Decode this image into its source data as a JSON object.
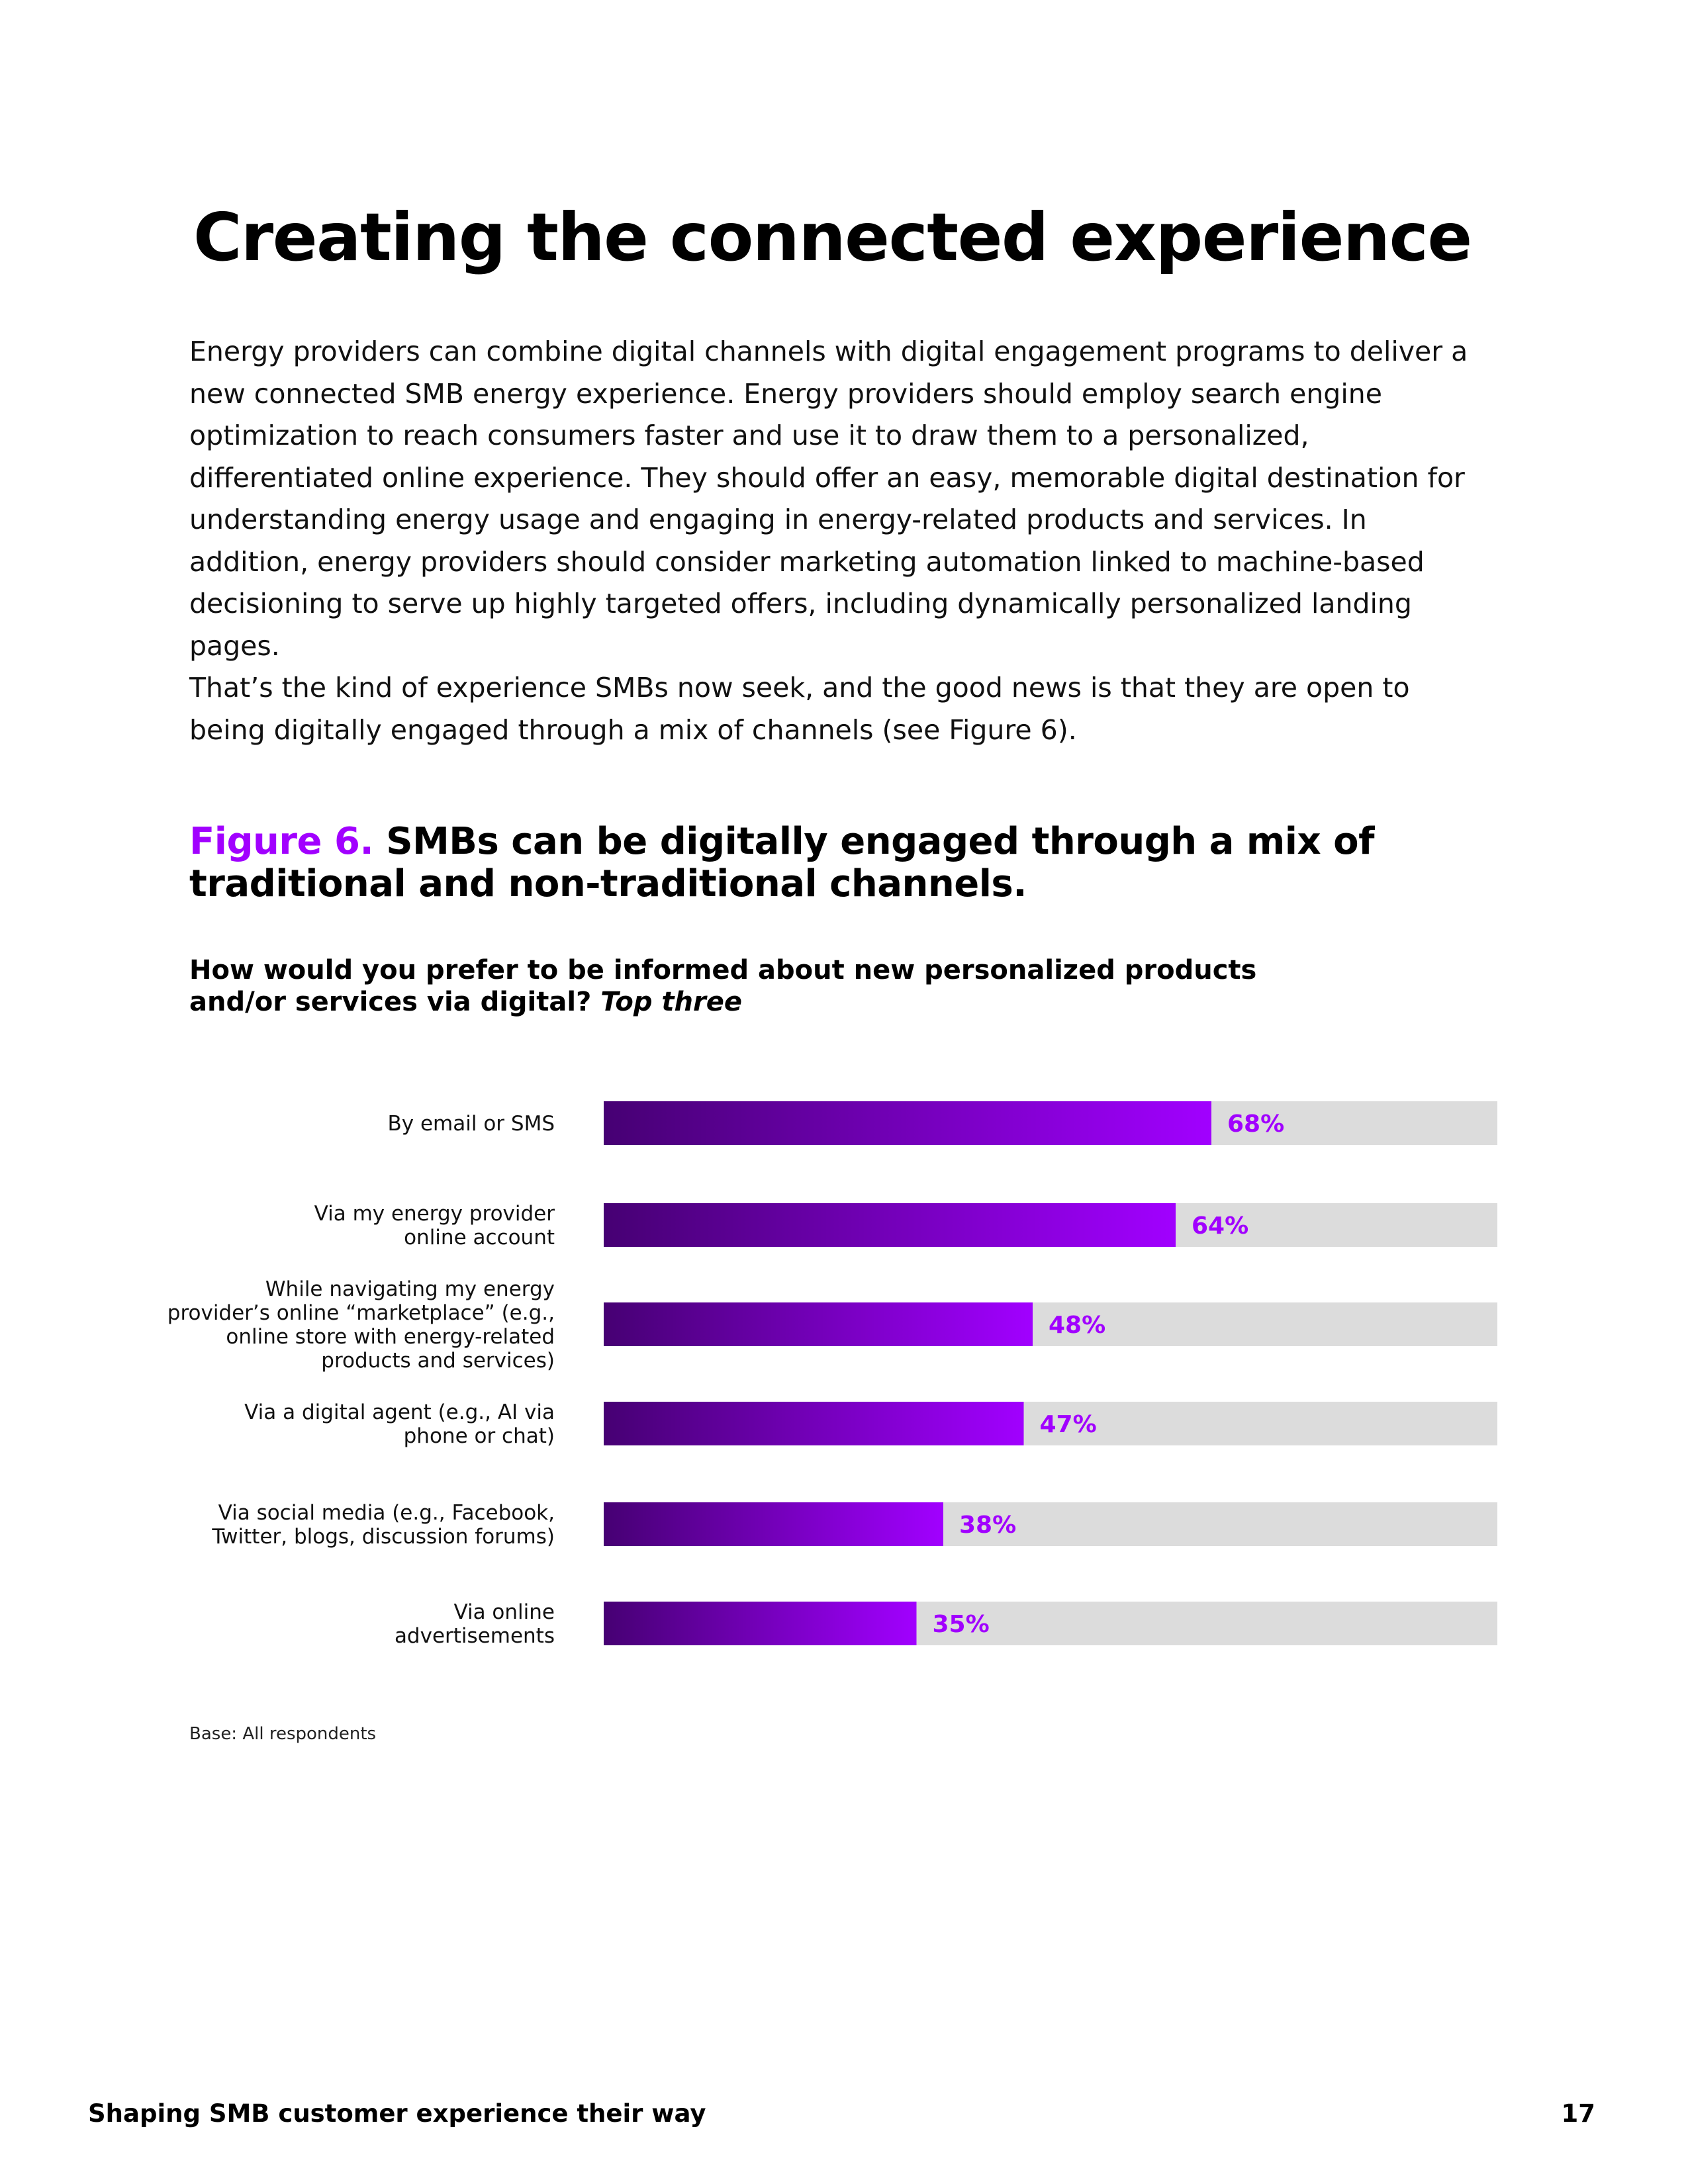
{
  "page": {
    "heading": "Creating the connected experience",
    "paragraphs": [
      "Energy providers can combine digital channels with digital engagement programs to deliver a new connected SMB energy experience. Energy providers should employ search engine optimization to reach consumers faster and use it to draw them to a personalized, differentiated online experience. They should offer an easy, memorable digital destination for understanding energy usage and engaging in energy-related products and services. In addition, energy providers should consider marketing automation linked to machine-based decisioning to serve up highly targeted offers, including dynamically personalized landing pages.",
      "That’s the kind of experience SMBs now seek, and the good news is that they are open to being digitally engaged through a mix of channels (see Figure 6)."
    ]
  },
  "figure": {
    "label": "Figure 6.",
    "title": "SMBs can be digitally engaged through a mix of traditional and non-traditional channels.",
    "question": "How would you prefer to be informed about new personalized products and/or services via digital?",
    "question_suffix": "Top three",
    "base_note": "Base: All respondents"
  },
  "chart_data": {
    "type": "bar",
    "orientation": "horizontal",
    "categories": [
      [
        "By email or SMS"
      ],
      [
        "Via my energy provider",
        "online account"
      ],
      [
        "While navigating my energy",
        "provider’s online “marketplace” (e.g.,",
        "online store with energy-related",
        "products and services)"
      ],
      [
        "Via a digital agent (e.g., AI via",
        "phone or chat)"
      ],
      [
        "Via social media (e.g., Facebook,",
        "Twitter, blogs, discussion forums)"
      ],
      [
        "Via online",
        "advertisements"
      ]
    ],
    "values": [
      68,
      64,
      48,
      47,
      38,
      35
    ],
    "value_labels": [
      "68%",
      "64%",
      "48%",
      "47%",
      "38%",
      "35%"
    ],
    "xlim": [
      0,
      100
    ],
    "unit": "%",
    "colors": {
      "bar_start": "#460073",
      "bar_end": "#a100ff",
      "track": "#dcdcdc",
      "value_text": "#a100ff"
    }
  },
  "footer": {
    "title": "Shaping SMB customer experience their way",
    "page_number": "17"
  }
}
